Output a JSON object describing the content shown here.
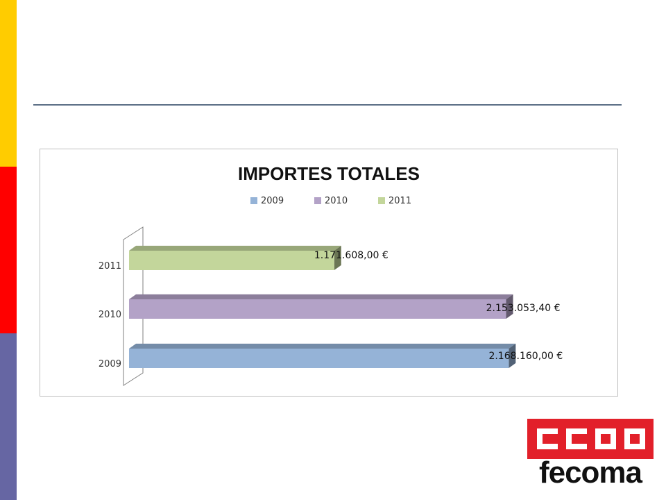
{
  "slide": {
    "colors": {
      "band_yellow": "#FFCC00",
      "band_red": "#FF0000",
      "band_blue": "#6666A3",
      "rule": "#5C6F86",
      "logo_red": "#E2202A"
    }
  },
  "logo": {
    "emblem": "CCOO",
    "word": "fecoma"
  },
  "chart_data": {
    "type": "bar",
    "orientation": "horizontal",
    "style": "3d",
    "title": "IMPORTES TOTALES",
    "categories": [
      "2009",
      "2010",
      "2011"
    ],
    "values": [
      2168160.0,
      2153053.4,
      1171608.0
    ],
    "data_labels": [
      "2.168.160,00 €",
      "2.153.053,40 €",
      "1.171.608,00 €"
    ],
    "legend": {
      "position": "top",
      "entries": [
        {
          "label": "2009",
          "color": "#95B3D7"
        },
        {
          "label": "2010",
          "color": "#B3A2C7"
        },
        {
          "label": "2011",
          "color": "#C3D69B"
        }
      ]
    },
    "xlim": [
      0,
      2250000
    ],
    "grid": false
  }
}
